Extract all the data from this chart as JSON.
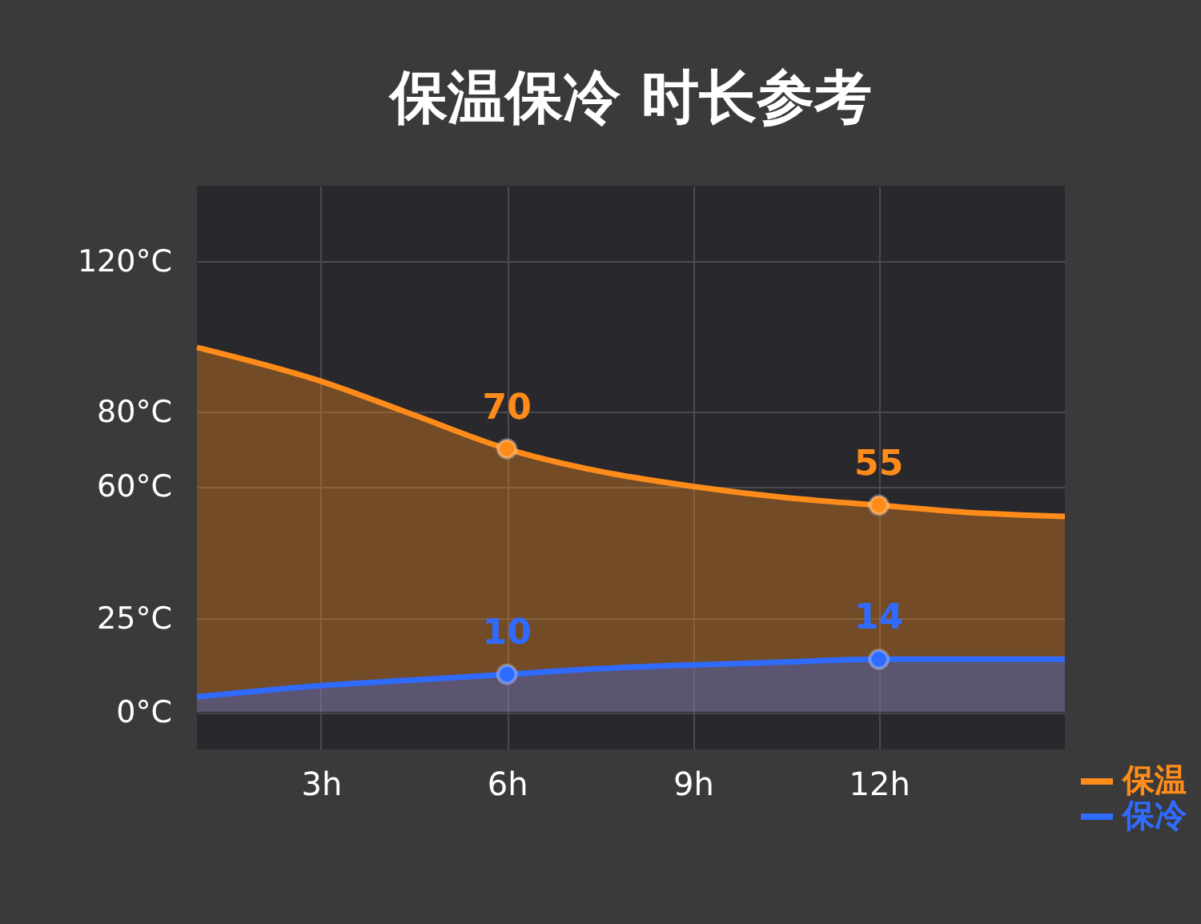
{
  "chart_data": {
    "type": "area",
    "title": "保温保冷  时长参考",
    "xlim": [
      1,
      15
    ],
    "xticks": [
      {
        "value": 3,
        "label": "3h"
      },
      {
        "value": 6,
        "label": "6h"
      },
      {
        "value": 9,
        "label": "9h"
      },
      {
        "value": 12,
        "label": "12h"
      }
    ],
    "ylim": [
      -10,
      140
    ],
    "yticks": [
      {
        "value": 0,
        "label": "0°C"
      },
      {
        "value": 25,
        "label": "25°C"
      },
      {
        "value": 60,
        "label": "60°C"
      },
      {
        "value": 80,
        "label": "80°C"
      },
      {
        "value": 120,
        "label": "120°C"
      }
    ],
    "x": [
      1,
      3,
      4.5,
      6,
      7.5,
      9,
      10.5,
      12,
      13.5,
      15
    ],
    "series": [
      {
        "name": "保温",
        "color": "#ff8c1a",
        "values": [
          97,
          88,
          79,
          70,
          64,
          60,
          57,
          55,
          53,
          52
        ],
        "value_labels": [
          null,
          null,
          null,
          "70",
          null,
          null,
          null,
          "55",
          null,
          null
        ]
      },
      {
        "name": "保冷",
        "color": "#2f6bff",
        "values": [
          4,
          7,
          8.5,
          10,
          11.5,
          12.5,
          13.3,
          14,
          14,
          14
        ],
        "value_labels": [
          null,
          null,
          null,
          "10",
          null,
          null,
          null,
          "14",
          null,
          null
        ]
      }
    ],
    "grid": true,
    "legend": "bottom right",
    "line_style": "solid"
  }
}
